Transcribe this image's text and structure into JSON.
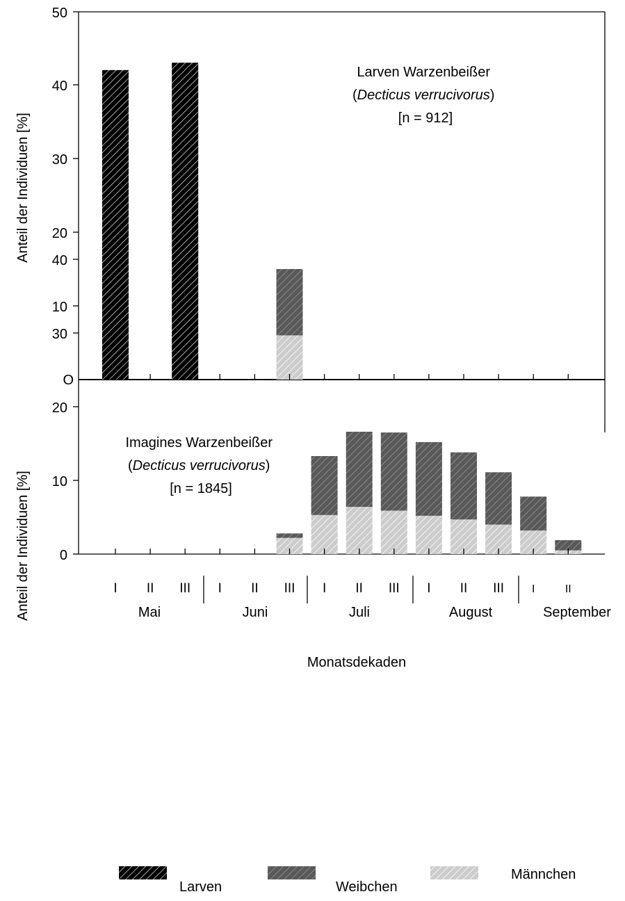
{
  "chart_data": [
    {
      "type": "bar",
      "stacked": true,
      "panel": "top",
      "annotation": [
        "Larven Warzenbeißer",
        "(",
        "Decticus verrucivorus",
        ")",
        "[n = 912]"
      ],
      "ylabel": "Anteil der Individuen [%]",
      "ylim": [
        0,
        50
      ],
      "yticks": [
        "0",
        "10",
        "20",
        "30",
        "40",
        "50"
      ],
      "zero_label_shown": "O",
      "categories": [
        "Mai I",
        "Mai II",
        "Mai III",
        "Juni I",
        "Juni II",
        "Juni III",
        "Juli I",
        "Juli II",
        "Juli III",
        "August I",
        "August II",
        "August III",
        "September I",
        "September II"
      ],
      "series": [
        {
          "name": "Larven",
          "values": [
            42,
            0,
            43,
            0,
            0,
            0,
            0,
            0,
            0,
            0,
            0,
            0,
            0,
            0
          ]
        },
        {
          "name": "Männchen",
          "values": [
            0,
            0,
            0,
            0,
            0,
            6,
            0,
            0,
            0,
            0,
            0,
            0,
            0,
            0
          ]
        },
        {
          "name": "Weibchen",
          "values": [
            0,
            0,
            0,
            0,
            0,
            9,
            0,
            0,
            0,
            0,
            0,
            0,
            0,
            0
          ]
        }
      ]
    },
    {
      "type": "bar",
      "stacked": true,
      "panel": "bottom",
      "annotation": [
        "Imagines Warzenbeißer",
        "(",
        "Decticus verrucivorus",
        ")",
        "[n = 1845]"
      ],
      "ylabel": "Anteil der Individuen [%]",
      "ylim": [
        0,
        50
      ],
      "yticks": [
        "0",
        "10",
        "20",
        "30",
        "40"
      ],
      "categories": [
        "Mai I",
        "Mai II",
        "Mai III",
        "Juni I",
        "Juni II",
        "Juni III",
        "Juli I",
        "Juli II",
        "Juli III",
        "August I",
        "August II",
        "August III",
        "September I",
        "September II"
      ],
      "series": [
        {
          "name": "Männchen",
          "values": [
            0,
            0,
            0,
            0,
            0,
            2.2,
            5.3,
            6.4,
            5.9,
            5.2,
            4.7,
            4.0,
            3.2,
            0.5
          ]
        },
        {
          "name": "Weibchen",
          "values": [
            0,
            0,
            0,
            0,
            0,
            0.6,
            8.0,
            10.2,
            10.6,
            10.0,
            9.1,
            7.1,
            4.6,
            1.4
          ]
        }
      ]
    }
  ],
  "xaxis": {
    "decade_labels": [
      "I",
      "II",
      "III",
      "I",
      "II",
      "III",
      "I",
      "II",
      "III",
      "I",
      "II",
      "III",
      "I",
      "II"
    ],
    "months": [
      "Mai",
      "Juni",
      "Juli",
      "August",
      "September"
    ],
    "xlabel": "Monatsdekaden"
  },
  "legend": {
    "items": [
      {
        "label": "Larven",
        "style": "larven"
      },
      {
        "label": "Weibchen",
        "style": "weibchen"
      },
      {
        "label": "Männchen",
        "style": "maennchen"
      }
    ]
  },
  "colors": {
    "larven": "#000000",
    "weibchen": "#5a5a5a",
    "maennchen": "#c8c8c8"
  }
}
